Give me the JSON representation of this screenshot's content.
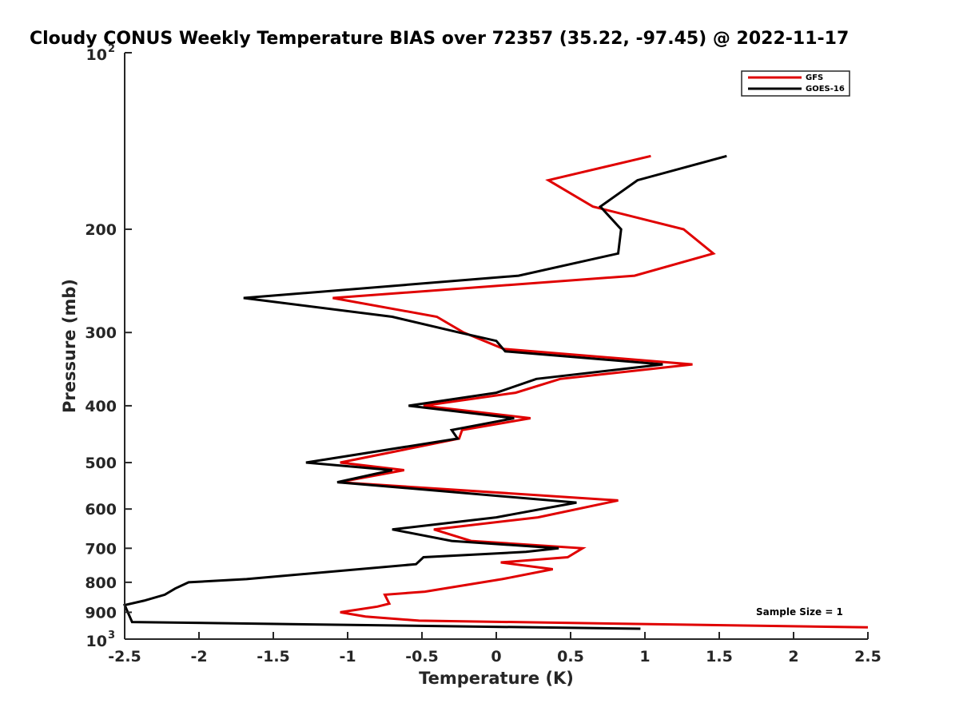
{
  "chart_data": {
    "type": "line",
    "title": "Cloudy CONUS Weekly Temperature BIAS over 72357 (35.22, -97.45) @ 2022-11-17",
    "xlabel": "Temperature (K)",
    "ylabel": "Pressure (mb)",
    "xlim": [
      -2.5,
      2.5
    ],
    "ylim": [
      100,
      1000
    ],
    "y_scale": "log",
    "y_reversed": true,
    "x_ticks": [
      {
        "value": -2.5,
        "label": "-2.5"
      },
      {
        "value": -2,
        "label": "-2"
      },
      {
        "value": -1.5,
        "label": "-1.5"
      },
      {
        "value": -1,
        "label": "-1"
      },
      {
        "value": -0.5,
        "label": "-0.5"
      },
      {
        "value": 0,
        "label": "0"
      },
      {
        "value": 0.5,
        "label": "0.5"
      },
      {
        "value": 1,
        "label": "1"
      },
      {
        "value": 1.5,
        "label": "1.5"
      },
      {
        "value": 2,
        "label": "2"
      },
      {
        "value": 2.5,
        "label": "2.5"
      }
    ],
    "y_ticks": [
      {
        "value": 200,
        "label": "200"
      },
      {
        "value": 300,
        "label": "300"
      },
      {
        "value": 400,
        "label": "400"
      },
      {
        "value": 500,
        "label": "500"
      },
      {
        "value": 600,
        "label": "600"
      },
      {
        "value": 700,
        "label": "700"
      },
      {
        "value": 800,
        "label": "800"
      },
      {
        "value": 900,
        "label": "900"
      }
    ],
    "y_power_ticks": [
      {
        "value": 100,
        "base": "10",
        "exp": "2"
      },
      {
        "value": 1000,
        "base": "10",
        "exp": "3"
      }
    ],
    "grid": false,
    "legend_position": "top-right",
    "annotation": "Sample Size = 1",
    "series": [
      {
        "name": "GFS",
        "color": "#e00000",
        "points": [
          {
            "x": 1.04,
            "p": 150
          },
          {
            "x": 0.35,
            "p": 165
          },
          {
            "x": 0.65,
            "p": 183
          },
          {
            "x": 1.26,
            "p": 200
          },
          {
            "x": 1.46,
            "p": 220
          },
          {
            "x": 0.93,
            "p": 240
          },
          {
            "x": -1.1,
            "p": 262
          },
          {
            "x": -0.4,
            "p": 282
          },
          {
            "x": -0.22,
            "p": 300
          },
          {
            "x": 0.05,
            "p": 320
          },
          {
            "x": 1.32,
            "p": 340
          },
          {
            "x": 0.43,
            "p": 360
          },
          {
            "x": 0.13,
            "p": 380
          },
          {
            "x": -0.49,
            "p": 400
          },
          {
            "x": 0.23,
            "p": 420
          },
          {
            "x": -0.23,
            "p": 440
          },
          {
            "x": -0.25,
            "p": 455
          },
          {
            "x": -1.05,
            "p": 500
          },
          {
            "x": -0.62,
            "p": 515
          },
          {
            "x": -1.06,
            "p": 540
          },
          {
            "x": 0.82,
            "p": 580
          },
          {
            "x": 0.28,
            "p": 620
          },
          {
            "x": -0.42,
            "p": 650
          },
          {
            "x": -0.17,
            "p": 680
          },
          {
            "x": 0.58,
            "p": 700
          },
          {
            "x": 0.48,
            "p": 725
          },
          {
            "x": 0.03,
            "p": 740
          },
          {
            "x": 0.38,
            "p": 760
          },
          {
            "x": 0.04,
            "p": 790
          },
          {
            "x": -0.48,
            "p": 830
          },
          {
            "x": -0.75,
            "p": 840
          },
          {
            "x": -0.72,
            "p": 870
          },
          {
            "x": -0.8,
            "p": 880
          },
          {
            "x": -1.05,
            "p": 900
          },
          {
            "x": -0.88,
            "p": 915
          },
          {
            "x": -0.52,
            "p": 930
          },
          {
            "x": 2.5,
            "p": 955
          }
        ]
      },
      {
        "name": "GOES-16",
        "color": "#000000",
        "points": [
          {
            "x": 1.55,
            "p": 150
          },
          {
            "x": 0.95,
            "p": 165
          },
          {
            "x": 0.7,
            "p": 183
          },
          {
            "x": 0.84,
            "p": 200
          },
          {
            "x": 0.82,
            "p": 220
          },
          {
            "x": 0.15,
            "p": 240
          },
          {
            "x": -1.7,
            "p": 262
          },
          {
            "x": -0.7,
            "p": 282
          },
          {
            "x": -0.25,
            "p": 300
          },
          {
            "x": 0.0,
            "p": 310
          },
          {
            "x": 0.06,
            "p": 323
          },
          {
            "x": 1.12,
            "p": 340
          },
          {
            "x": 0.27,
            "p": 360
          },
          {
            "x": 0.0,
            "p": 380
          },
          {
            "x": -0.59,
            "p": 400
          },
          {
            "x": 0.12,
            "p": 420
          },
          {
            "x": -0.3,
            "p": 440
          },
          {
            "x": -0.26,
            "p": 455
          },
          {
            "x": -1.28,
            "p": 500
          },
          {
            "x": -0.7,
            "p": 515
          },
          {
            "x": -1.07,
            "p": 540
          },
          {
            "x": 0.54,
            "p": 585
          },
          {
            "x": 0.0,
            "p": 620
          },
          {
            "x": -0.7,
            "p": 650
          },
          {
            "x": -0.3,
            "p": 680
          },
          {
            "x": 0.42,
            "p": 700
          },
          {
            "x": 0.2,
            "p": 710
          },
          {
            "x": -0.49,
            "p": 725
          },
          {
            "x": -0.54,
            "p": 745
          },
          {
            "x": -1.68,
            "p": 790
          },
          {
            "x": -2.07,
            "p": 800
          },
          {
            "x": -2.16,
            "p": 820
          },
          {
            "x": -2.23,
            "p": 840
          },
          {
            "x": -2.37,
            "p": 860
          },
          {
            "x": -2.5,
            "p": 875
          },
          {
            "x": -2.45,
            "p": 935
          },
          {
            "x": 0.97,
            "p": 960
          }
        ]
      }
    ]
  }
}
